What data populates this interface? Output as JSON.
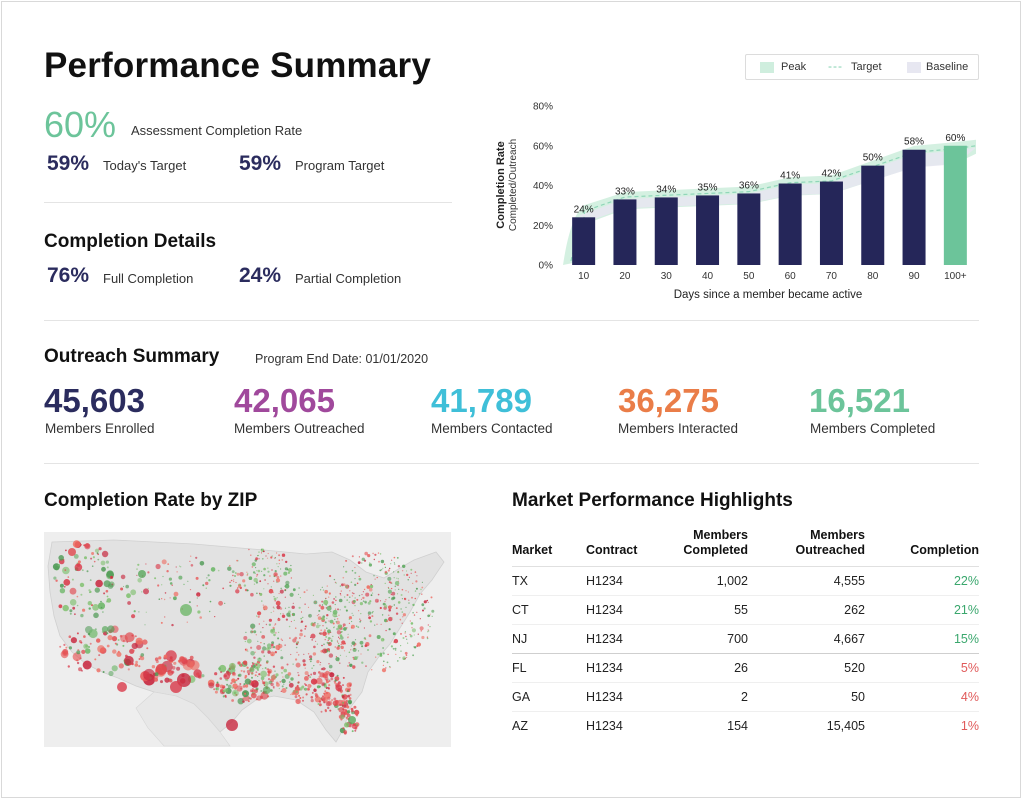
{
  "header": {
    "title": "Performance Summary"
  },
  "assessment": {
    "rate": "60%",
    "rate_label": "Assessment Completion Rate",
    "todays_target_value": "59%",
    "todays_target_label": "Today's Target",
    "program_target_value": "59%",
    "program_target_label": "Program Target"
  },
  "completion_details": {
    "title": "Completion Details",
    "full_value": "76%",
    "full_label": "Full Completion",
    "partial_value": "24%",
    "partial_label": "Partial Completion"
  },
  "outreach": {
    "title": "Outreach Summary",
    "end_date": "Program End Date: 01/01/2020",
    "stats": [
      {
        "value": "45,603",
        "label": "Members Enrolled",
        "color": "#2b2c5e"
      },
      {
        "value": "42,065",
        "label": "Members Outreached",
        "color": "#a0499c"
      },
      {
        "value": "41,789",
        "label": "Members Contacted",
        "color": "#3fbfd8"
      },
      {
        "value": "36,275",
        "label": "Members Interacted",
        "color": "#ea7d48"
      },
      {
        "value": "16,521",
        "label": "Members Completed",
        "color": "#6cc49a"
      }
    ]
  },
  "zip_map": {
    "title": "Completion Rate by ZIP"
  },
  "market": {
    "title": "Market Performance Highlights",
    "columns": [
      "Market",
      "Contract",
      "Members Completed",
      "Members Outreached",
      "Completion"
    ],
    "rows": [
      [
        "TX",
        "H1234",
        "1,002",
        "4,555",
        "22%"
      ],
      [
        "CT",
        "H1234",
        "55",
        "262",
        "21%"
      ],
      [
        "NJ",
        "H1234",
        "700",
        "4,667",
        "15%"
      ],
      [
        "FL",
        "H1234",
        "26",
        "520",
        "5%"
      ],
      [
        "GA",
        "H1234",
        "2",
        "50",
        "4%"
      ],
      [
        "AZ",
        "H1234",
        "154",
        "15,405",
        "1%"
      ]
    ]
  },
  "legend": {
    "peak": "Peak",
    "target": "Target",
    "baseline": "Baseline"
  },
  "chart_data": {
    "type": "bar",
    "categories": [
      "10",
      "20",
      "30",
      "40",
      "50",
      "60",
      "70",
      "80",
      "90",
      "100+"
    ],
    "values": [
      24,
      33,
      34,
      35,
      36,
      41,
      42,
      50,
      58,
      60
    ],
    "labels": [
      "24%",
      "33%",
      "34%",
      "35%",
      "36%",
      "41%",
      "42%",
      "50%",
      "58%",
      "60%"
    ],
    "yticks": [
      "0%",
      "20%",
      "40%",
      "60%",
      "80%"
    ],
    "ylim": [
      0,
      80
    ],
    "ylabel": "Completion Rate",
    "ylabel2": "Completed/Outreach",
    "xlabel": "Days since a member became active",
    "bar_color": "#252659",
    "highlight_color": "#6cc49a",
    "peak_color": "#cfeede",
    "baseline_color": "#e7e7f1"
  }
}
